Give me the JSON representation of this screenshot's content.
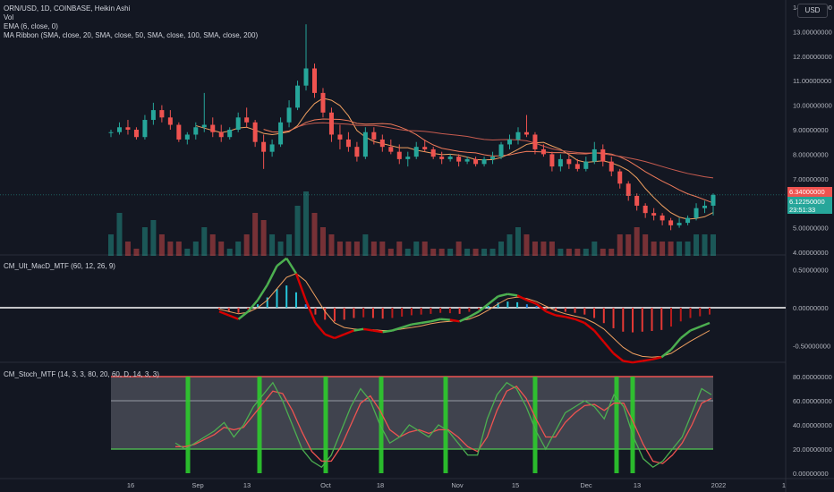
{
  "header": {
    "symbol_line": "ORN/USD, 1D, COINBASE, Heikin Ashi",
    "indicator_vol": "Vol",
    "indicator_ema": "EMA (6, close, 0)",
    "indicator_ma_ribbon": "MA Ribbon (SMA, close, 20, SMA, close, 50, SMA, close, 100, SMA, close, 200)",
    "currency_button": "USD"
  },
  "price_tags": {
    "last_price": "6.34000000",
    "ema_value": "6.12250000",
    "countdown": "23:51:33"
  },
  "panes": {
    "macd_label": "CM_Ult_MacD_MTF (60, 12, 26, 9)",
    "stoch_label": "CM_Stoch_MTF (14, 3, 3, 80, 20, 60, D, 14, 3, 3)"
  },
  "price_axis_labels": [
    "14.00000000",
    "13.00000000",
    "12.00000000",
    "11.00000000",
    "10.00000000",
    "9.00000000",
    "8.00000000",
    "7.00000000",
    "5.00000000",
    "4.00000000"
  ],
  "macd_axis_labels": [
    "0.50000000",
    "0.00000000",
    "-0.50000000"
  ],
  "stoch_axis_labels": [
    "80.00000000",
    "60.00000000",
    "40.00000000",
    "20.00000000",
    "0.00000000"
  ],
  "time_axis_labels": [
    "16",
    "Sep",
    "13",
    "Oct",
    "18",
    "Nov",
    "15",
    "Dec",
    "13",
    "2022",
    "1"
  ],
  "colors": {
    "background": "#131722",
    "up": "#26a69a",
    "down": "#ef5350",
    "last_price": "#ef5350",
    "ema_tag": "#26a69a"
  },
  "chart_data": [
    {
      "type": "candlestick",
      "title": "ORN/USD, 1D, COINBASE, Heikin Ashi",
      "ylim": [
        4,
        14
      ],
      "candles": [
        [
          8.9,
          9.0,
          8.7,
          8.9
        ],
        [
          8.9,
          9.3,
          8.8,
          9.1
        ],
        [
          9.1,
          9.4,
          8.8,
          9.0
        ],
        [
          9.0,
          9.1,
          8.6,
          8.7
        ],
        [
          8.7,
          9.6,
          8.6,
          9.4
        ],
        [
          9.4,
          10.1,
          9.2,
          9.8
        ],
        [
          9.8,
          10.0,
          9.3,
          9.5
        ],
        [
          9.5,
          9.8,
          9.0,
          9.2
        ],
        [
          9.2,
          9.3,
          8.5,
          8.6
        ],
        [
          8.6,
          8.9,
          8.4,
          8.8
        ],
        [
          8.8,
          9.3,
          8.6,
          9.1
        ],
        [
          9.1,
          10.5,
          8.9,
          9.2
        ],
        [
          9.2,
          9.5,
          8.7,
          8.9
        ],
        [
          8.9,
          9.2,
          8.5,
          8.7
        ],
        [
          8.7,
          9.1,
          8.6,
          9.0
        ],
        [
          9.0,
          9.7,
          8.9,
          9.5
        ],
        [
          9.5,
          9.9,
          9.1,
          9.3
        ],
        [
          9.3,
          9.4,
          8.3,
          8.5
        ],
        [
          8.5,
          8.8,
          7.4,
          8.1
        ],
        [
          8.1,
          8.6,
          7.9,
          8.4
        ],
        [
          8.4,
          9.5,
          8.3,
          9.3
        ],
        [
          9.3,
          10.2,
          9.1,
          9.9
        ],
        [
          9.9,
          11.0,
          9.8,
          10.8
        ],
        [
          10.8,
          13.3,
          10.6,
          11.5
        ],
        [
          11.5,
          11.7,
          10.3,
          10.5
        ],
        [
          10.5,
          10.7,
          9.5,
          9.7
        ],
        [
          9.7,
          9.9,
          8.5,
          8.8
        ],
        [
          8.8,
          9.2,
          8.2,
          8.6
        ],
        [
          8.6,
          8.9,
          8.1,
          8.3
        ],
        [
          8.3,
          8.5,
          7.7,
          7.9
        ],
        [
          7.9,
          9.1,
          7.8,
          8.9
        ],
        [
          8.9,
          9.1,
          8.4,
          8.6
        ],
        [
          8.6,
          8.8,
          8.1,
          8.3
        ],
        [
          8.3,
          8.6,
          8.0,
          8.1
        ],
        [
          8.1,
          8.4,
          7.6,
          7.8
        ],
        [
          7.8,
          8.1,
          7.5,
          7.9
        ],
        [
          7.9,
          8.5,
          7.8,
          8.3
        ],
        [
          8.3,
          8.6,
          8.1,
          8.2
        ],
        [
          8.2,
          8.3,
          7.8,
          7.9
        ],
        [
          7.9,
          8.1,
          7.6,
          7.8
        ],
        [
          7.8,
          8.0,
          7.7,
          7.9
        ],
        [
          7.9,
          8.0,
          7.5,
          7.7
        ],
        [
          7.7,
          7.9,
          7.6,
          7.8
        ],
        [
          7.8,
          7.9,
          7.5,
          7.6
        ],
        [
          7.6,
          7.9,
          7.5,
          7.8
        ],
        [
          7.8,
          8.1,
          7.6,
          7.9
        ],
        [
          7.9,
          8.5,
          7.8,
          8.4
        ],
        [
          8.4,
          8.8,
          8.2,
          8.6
        ],
        [
          8.6,
          9.1,
          8.4,
          8.9
        ],
        [
          8.9,
          9.6,
          8.7,
          8.8
        ],
        [
          8.8,
          8.9,
          8.0,
          8.2
        ],
        [
          8.2,
          8.4,
          7.9,
          8.0
        ],
        [
          8.0,
          8.1,
          7.3,
          7.5
        ],
        [
          7.5,
          8.0,
          7.3,
          7.8
        ],
        [
          7.8,
          8.0,
          7.4,
          7.6
        ],
        [
          7.6,
          7.8,
          7.3,
          7.4
        ],
        [
          7.4,
          7.9,
          7.3,
          7.7
        ],
        [
          7.7,
          8.5,
          7.6,
          8.2
        ],
        [
          8.2,
          8.4,
          7.5,
          7.7
        ],
        [
          7.7,
          7.9,
          7.1,
          7.3
        ],
        [
          7.3,
          7.4,
          6.6,
          6.8
        ],
        [
          6.8,
          6.9,
          6.1,
          6.3
        ],
        [
          6.3,
          6.4,
          5.7,
          5.9
        ],
        [
          5.9,
          6.0,
          5.4,
          5.6
        ],
        [
          5.6,
          5.8,
          5.3,
          5.5
        ],
        [
          5.5,
          5.6,
          5.1,
          5.3
        ],
        [
          5.3,
          5.4,
          4.9,
          5.1
        ],
        [
          5.1,
          5.4,
          5.0,
          5.2
        ],
        [
          5.2,
          5.5,
          5.1,
          5.4
        ],
        [
          5.4,
          6.0,
          5.3,
          5.8
        ],
        [
          5.8,
          6.1,
          5.6,
          5.9
        ],
        [
          5.9,
          6.4,
          5.5,
          6.34
        ]
      ]
    },
    {
      "type": "bar",
      "title": "Vol",
      "values": [
        3,
        6,
        2,
        1,
        4,
        5,
        3,
        2,
        2,
        1,
        2,
        4,
        3,
        2,
        1,
        2,
        3,
        6,
        5,
        3,
        2,
        3,
        7,
        9,
        6,
        4,
        3,
        2,
        2,
        2,
        3,
        2,
        2,
        1,
        2,
        1,
        2,
        2,
        1,
        1,
        1,
        2,
        1,
        1,
        1,
        1,
        2,
        3,
        4,
        3,
        2,
        2,
        2,
        1,
        1,
        1,
        1,
        2,
        1,
        1,
        3,
        3,
        4,
        3,
        2,
        2,
        2,
        2,
        2,
        3,
        3,
        3
      ],
      "up": [
        true,
        true,
        false,
        false,
        true,
        true,
        false,
        false,
        false,
        true,
        true,
        true,
        false,
        false,
        true,
        true,
        false,
        false,
        false,
        true,
        true,
        true,
        true,
        true,
        false,
        false,
        false,
        false,
        false,
        false,
        true,
        false,
        false,
        false,
        false,
        true,
        true,
        false,
        false,
        false,
        true,
        false,
        true,
        false,
        true,
        true,
        true,
        true,
        true,
        false,
        false,
        false,
        false,
        true,
        false,
        false,
        true,
        true,
        false,
        false,
        false,
        false,
        false,
        false,
        false,
        false,
        false,
        true,
        true,
        true,
        true,
        true
      ]
    },
    {
      "type": "line",
      "title": "CM_Ult_MacD_MTF (60, 12, 26, 9)",
      "ylim": [
        -0.9,
        0.9
      ],
      "series": [
        {
          "values": [
            -0.05,
            -0.1,
            -0.15,
            -0.05,
            0.1,
            0.3,
            0.55,
            0.65,
            0.45,
            0.1,
            -0.2,
            -0.35,
            -0.4,
            -0.35,
            -0.3,
            -0.28,
            -0.3,
            -0.32,
            -0.3,
            -0.26,
            -0.22,
            -0.2,
            -0.18,
            -0.15,
            -0.16,
            -0.18,
            -0.12,
            -0.05,
            0.05,
            0.15,
            0.18,
            0.16,
            0.1,
            0.05,
            -0.05,
            -0.1,
            -0.12,
            -0.15,
            -0.2,
            -0.3,
            -0.45,
            -0.6,
            -0.7,
            -0.72,
            -0.7,
            -0.68,
            -0.65,
            -0.55,
            -0.4,
            -0.3,
            -0.25,
            -0.2
          ]
        },
        {
          "values": [
            -0.02,
            -0.05,
            -0.08,
            -0.06,
            0.0,
            0.1,
            0.25,
            0.4,
            0.45,
            0.35,
            0.15,
            -0.05,
            -0.2,
            -0.26,
            -0.28,
            -0.29,
            -0.29,
            -0.3,
            -0.3,
            -0.28,
            -0.26,
            -0.24,
            -0.21,
            -0.19,
            -0.18,
            -0.17,
            -0.15,
            -0.1,
            -0.03,
            0.05,
            0.12,
            0.14,
            0.12,
            0.08,
            0.02,
            -0.04,
            -0.08,
            -0.11,
            -0.14,
            -0.2,
            -0.28,
            -0.4,
            -0.52,
            -0.6,
            -0.64,
            -0.65,
            -0.64,
            -0.6,
            -0.52,
            -0.44,
            -0.37,
            -0.3
          ]
        }
      ]
    },
    {
      "type": "line",
      "title": "CM_Stoch_MTF (14, 3, 3, 80, 20, 60, D, 14, 3, 3)",
      "ylim": [
        0,
        100
      ],
      "series": [
        {
          "values": [
            25,
            20,
            25,
            30,
            35,
            42,
            30,
            40,
            55,
            65,
            75,
            60,
            40,
            20,
            10,
            5,
            15,
            35,
            55,
            70,
            60,
            40,
            25,
            30,
            40,
            35,
            30,
            40,
            35,
            25,
            15,
            15,
            45,
            65,
            75,
            70,
            55,
            35,
            20,
            35,
            50,
            55,
            60,
            55,
            45,
            65,
            55,
            30,
            12,
            5,
            10,
            20,
            30,
            50,
            70,
            65
          ]
        },
        {
          "values": [
            22,
            22,
            24,
            28,
            32,
            38,
            36,
            38,
            48,
            58,
            68,
            66,
            52,
            34,
            18,
            10,
            10,
            22,
            40,
            58,
            64,
            52,
            36,
            30,
            34,
            36,
            33,
            36,
            36,
            30,
            22,
            18,
            30,
            52,
            68,
            72,
            62,
            45,
            30,
            30,
            42,
            50,
            56,
            57,
            52,
            58,
            58,
            42,
            24,
            10,
            8,
            15,
            25,
            40,
            58,
            62
          ]
        }
      ],
      "bands": [
        20,
        60,
        80
      ]
    }
  ]
}
